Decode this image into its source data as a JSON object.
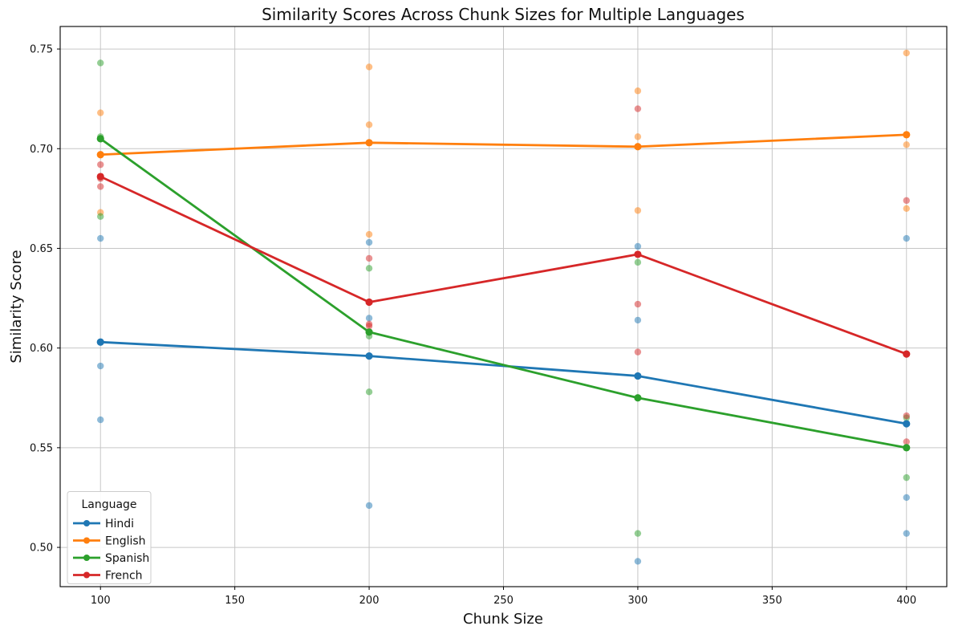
{
  "title": "Similarity Scores Across Chunk Sizes for Multiple Languages",
  "chart_data": {
    "type": "line",
    "subtype": "mean-line-with-scatter-observations",
    "title": "Similarity Scores Across Chunk Sizes for Multiple Languages",
    "xlabel": "Chunk Size",
    "ylabel": "Similarity Score",
    "x": [
      100,
      200,
      300,
      400
    ],
    "x_ticks": [
      100,
      150,
      200,
      250,
      300,
      350,
      400
    ],
    "y_ticks": [
      0.5,
      0.55,
      0.6,
      0.65,
      0.7,
      0.75
    ],
    "xlim": [
      85,
      415
    ],
    "ylim": [
      0.4803,
      0.7613
    ],
    "grid": true,
    "grid_color": "#c6c6c6",
    "scatter_alpha": 0.5,
    "legend": {
      "title": "Language",
      "position": "lower-left",
      "entries": [
        "Hindi",
        "English",
        "Spanish",
        "French"
      ]
    },
    "series": [
      {
        "name": "Hindi",
        "color": "#1f77b4",
        "mean_values": [
          0.603,
          0.596,
          0.586,
          0.562
        ],
        "scatter": [
          [
            0.655,
            0.591,
            0.564
          ],
          [
            0.653,
            0.615,
            0.521
          ],
          [
            0.651,
            0.614,
            0.493
          ],
          [
            0.655,
            0.525,
            0.507
          ]
        ]
      },
      {
        "name": "English",
        "color": "#ff7f0e",
        "mean_values": [
          0.697,
          0.703,
          0.701,
          0.707
        ],
        "scatter": [
          [
            0.718,
            0.705,
            0.668
          ],
          [
            0.741,
            0.712,
            0.657
          ],
          [
            0.729,
            0.706,
            0.669
          ],
          [
            0.748,
            0.702,
            0.67
          ]
        ]
      },
      {
        "name": "Spanish",
        "color": "#2ca02c",
        "mean_values": [
          0.705,
          0.608,
          0.575,
          0.55
        ],
        "scatter": [
          [
            0.743,
            0.706,
            0.666
          ],
          [
            0.64,
            0.606,
            0.578
          ],
          [
            0.643,
            0.575,
            0.507
          ],
          [
            0.565,
            0.55,
            0.535
          ]
        ]
      },
      {
        "name": "French",
        "color": "#d62728",
        "mean_values": [
          0.686,
          0.623,
          0.647,
          0.597
        ],
        "scatter": [
          [
            0.692,
            0.685,
            0.681
          ],
          [
            0.645,
            0.612,
            0.611
          ],
          [
            0.72,
            0.622,
            0.598
          ],
          [
            0.674,
            0.566,
            0.553
          ]
        ]
      }
    ]
  }
}
